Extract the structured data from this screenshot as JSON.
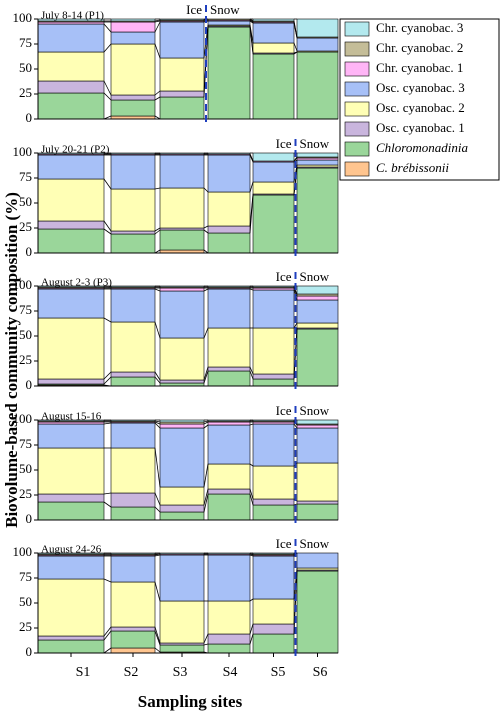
{
  "chart_data": [
    {
      "type": "bar",
      "stacked": true,
      "title": "July 8-14 (P1)",
      "ylim": [
        0,
        100
      ],
      "yticks": [
        0,
        25,
        50,
        75,
        100
      ],
      "boundary_after": 3,
      "boundary_labels": [
        "Ice",
        "Snow"
      ],
      "y_label": "Biovolume-based community composition (%)",
      "series": [
        {
          "name": "Chr. cyanobac. 3",
          "color": "#b3e9ee",
          "values": [
            2,
            2,
            1,
            0,
            2,
            18
          ]
        },
        {
          "name": "Chr. cyanobac. 2",
          "color": "#c4bd98",
          "values": [
            1,
            1,
            1,
            1,
            1,
            1
          ]
        },
        {
          "name": "Chr. cyanobac. 1",
          "color": "#ffb5f6",
          "values": [
            2,
            10,
            1,
            1,
            1,
            0
          ]
        },
        {
          "name": "Osc. cyanobac. 3",
          "color": "#a7c0f7",
          "values": [
            28,
            12,
            36,
            4,
            20,
            13
          ]
        },
        {
          "name": "Osc. cyanobac. 2",
          "color": "#ffffb5",
          "values": [
            29,
            51,
            33,
            1,
            10,
            1
          ]
        },
        {
          "name": "Osc. cyanobac. 1",
          "color": "#c9b5dd",
          "values": [
            12,
            5,
            6,
            1,
            1,
            0
          ]
        },
        {
          "name": "Chloromonadinia",
          "color": "#9ad69a",
          "italic": true,
          "values": [
            26,
            16,
            22,
            92,
            65,
            67
          ]
        },
        {
          "name": "C. brébissonii",
          "color": "#ffc58f",
          "italic": true,
          "values": [
            0,
            3,
            0,
            0,
            0,
            0
          ]
        }
      ]
    },
    {
      "type": "bar",
      "stacked": true,
      "title": "July 20-21 (P2)",
      "ylim": [
        0,
        100
      ],
      "yticks": [
        0,
        25,
        50,
        75,
        100
      ],
      "boundary_after": 5,
      "boundary_labels": [
        "Ice",
        "Snow"
      ],
      "series": [
        {
          "values": [
            1,
            1,
            1,
            1,
            8,
            4
          ]
        },
        {
          "values": [
            0,
            0,
            0,
            0,
            0,
            1
          ]
        },
        {
          "values": [
            1,
            1,
            1,
            1,
            1,
            2
          ]
        },
        {
          "values": [
            24,
            34,
            33,
            37,
            20,
            5
          ]
        },
        {
          "values": [
            42,
            42,
            40,
            34,
            12,
            2
          ]
        },
        {
          "values": [
            8,
            3,
            2,
            7,
            1,
            1
          ]
        },
        {
          "values": [
            24,
            19,
            20,
            20,
            58,
            85
          ]
        },
        {
          "values": [
            0,
            0,
            3,
            0,
            0,
            0
          ]
        }
      ]
    },
    {
      "type": "bar",
      "stacked": true,
      "title": "August 2-3 (P3)",
      "ylim": [
        0,
        100
      ],
      "yticks": [
        0,
        25,
        50,
        75,
        100
      ],
      "boundary_after": 5,
      "boundary_labels": [
        "Ice",
        "Snow"
      ],
      "series": [
        {
          "values": [
            1,
            1,
            1,
            1,
            1,
            8
          ]
        },
        {
          "values": [
            1,
            1,
            1,
            1,
            1,
            2
          ]
        },
        {
          "values": [
            1,
            1,
            3,
            1,
            2,
            4
          ]
        },
        {
          "values": [
            29,
            33,
            47,
            39,
            38,
            23
          ]
        },
        {
          "values": [
            61,
            50,
            42,
            39,
            46,
            5
          ]
        },
        {
          "values": [
            5,
            5,
            3,
            4,
            5,
            1
          ]
        },
        {
          "values": [
            1,
            9,
            3,
            15,
            7,
            57
          ]
        },
        {
          "values": [
            1,
            0,
            0,
            0,
            0,
            0
          ]
        }
      ]
    },
    {
      "type": "bar",
      "stacked": true,
      "title": "August 15-16",
      "ylim": [
        0,
        100
      ],
      "yticks": [
        0,
        25,
        50,
        75,
        100
      ],
      "boundary_after": 5,
      "boundary_labels": [
        "Ice",
        "Snow"
      ],
      "series": [
        {
          "values": [
            1,
            1,
            2,
            1,
            1,
            4
          ]
        },
        {
          "values": [
            1,
            1,
            2,
            1,
            1,
            1
          ]
        },
        {
          "values": [
            2,
            1,
            4,
            3,
            2,
            3
          ]
        },
        {
          "values": [
            24,
            25,
            59,
            39,
            42,
            35
          ]
        },
        {
          "values": [
            46,
            45,
            18,
            25,
            33,
            38
          ]
        },
        {
          "values": [
            8,
            14,
            7,
            5,
            6,
            3
          ]
        },
        {
          "values": [
            18,
            13,
            8,
            26,
            15,
            16
          ]
        },
        {
          "values": [
            0,
            0,
            0,
            0,
            0,
            0
          ]
        }
      ]
    },
    {
      "type": "bar",
      "stacked": true,
      "title": "August 24-26",
      "ylim": [
        0,
        100
      ],
      "yticks": [
        0,
        25,
        50,
        75,
        100
      ],
      "boundary_after": 5,
      "boundary_labels": [
        "Ice",
        "Snow"
      ],
      "x_label": "Sampling sites",
      "categories": [
        "S1",
        "S2",
        "S3",
        "S4",
        "S5",
        "S6"
      ],
      "series": [
        {
          "values": [
            1,
            1,
            1,
            1,
            1,
            0
          ]
        },
        {
          "values": [
            1,
            1,
            0,
            0,
            1,
            0
          ]
        },
        {
          "values": [
            1,
            1,
            1,
            1,
            1,
            0
          ]
        },
        {
          "values": [
            23,
            26,
            46,
            46,
            43,
            15
          ]
        },
        {
          "values": [
            57,
            45,
            42,
            33,
            25,
            2
          ]
        },
        {
          "values": [
            4,
            4,
            2,
            10,
            10,
            1
          ]
        },
        {
          "values": [
            13,
            17,
            7,
            9,
            19,
            82
          ]
        },
        {
          "values": [
            0,
            5,
            1,
            0,
            0,
            0
          ]
        }
      ]
    }
  ]
}
